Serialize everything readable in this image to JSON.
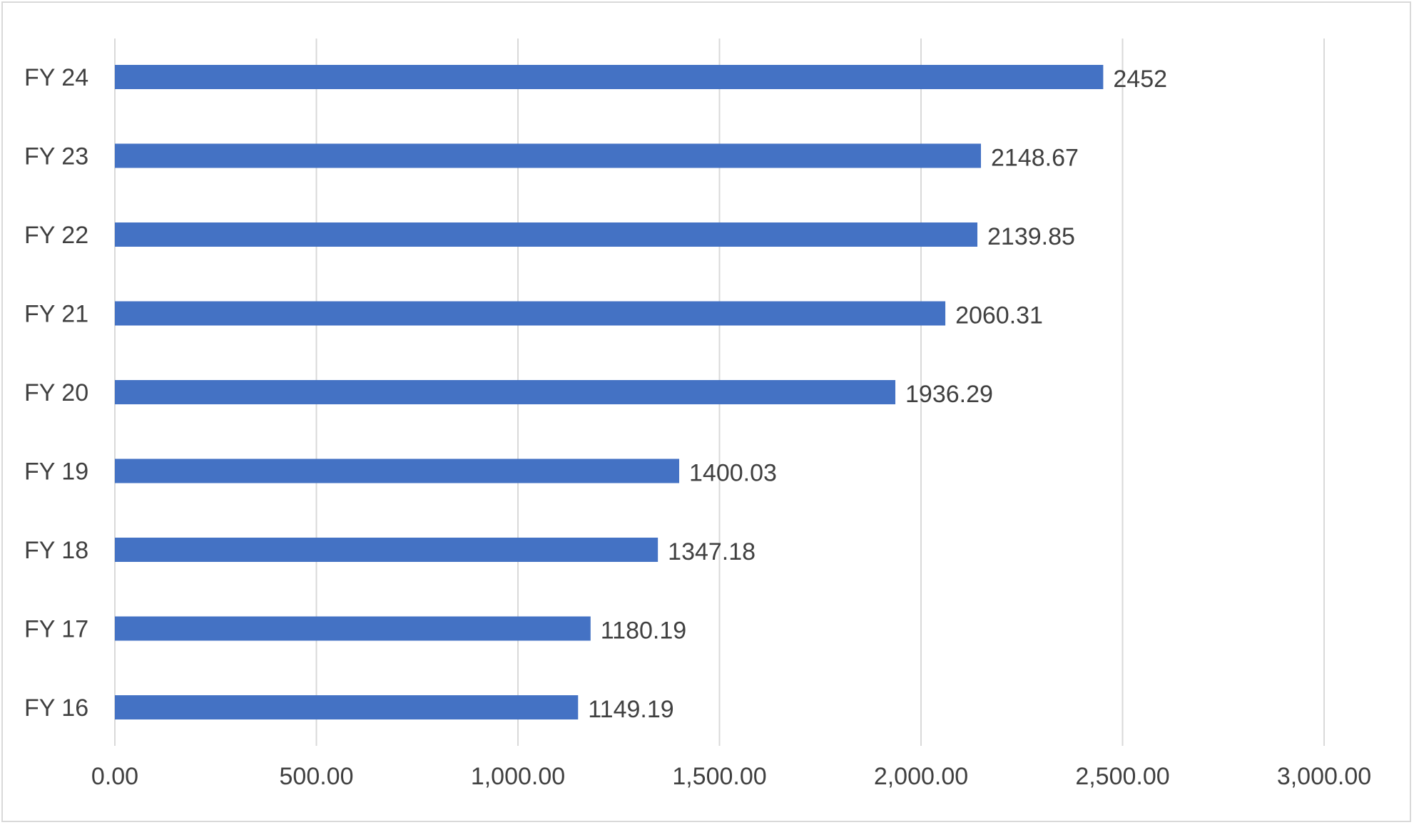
{
  "chart_data": {
    "type": "bar",
    "orientation": "horizontal",
    "categories": [
      "FY 24",
      "FY 23",
      "FY 22",
      "FY 21",
      "FY 20",
      "FY 19",
      "FY 18",
      "FY 17",
      "FY 16"
    ],
    "values": [
      2452,
      2148.67,
      2139.85,
      2060.31,
      1936.29,
      1400.03,
      1347.18,
      1180.19,
      1149.19
    ],
    "data_labels": [
      "2452",
      "2148.67",
      "2139.85",
      "2060.31",
      "1936.29",
      "1400.03",
      "1347.18",
      "1180.19",
      "1149.19"
    ],
    "x_ticks": [
      "0.00",
      "500.00",
      "1,000.00",
      "1,500.00",
      "2,000.00",
      "2,500.00",
      "3,000.00"
    ],
    "xlim": [
      0,
      3000
    ],
    "title": "",
    "xlabel": "",
    "ylabel": "",
    "grid": "vertical",
    "legend": "none",
    "bar_color": "#4472c4",
    "grid_color": "#d9d9d9"
  }
}
